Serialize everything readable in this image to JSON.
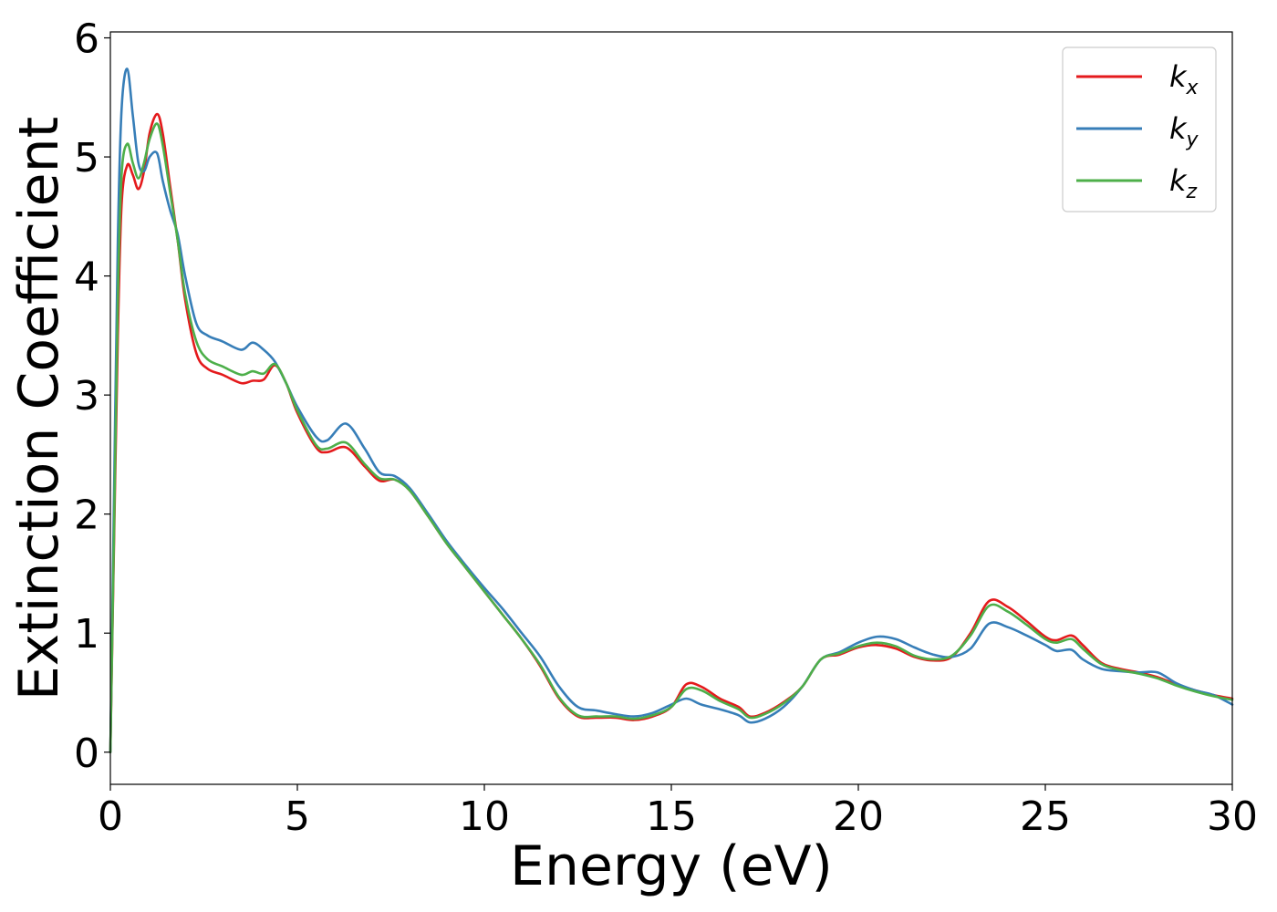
{
  "chart_data": {
    "type": "line",
    "title": "",
    "xlabel": "Energy (eV)",
    "ylabel": "Extinction Coefficient",
    "xlim": [
      0,
      30
    ],
    "ylim": [
      -0.27,
      6.05
    ],
    "xticks": [
      0,
      5,
      10,
      15,
      20,
      25,
      30
    ],
    "yticks": [
      0,
      1,
      2,
      3,
      4,
      5,
      6
    ],
    "grid": false,
    "legend_position": "top-right",
    "x": [
      0,
      0.1,
      0.2,
      0.3,
      0.45,
      0.6,
      0.75,
      0.9,
      1.05,
      1.25,
      1.4,
      1.6,
      1.8,
      2.0,
      2.3,
      2.6,
      3.0,
      3.5,
      3.8,
      4.1,
      4.4,
      4.7,
      5.0,
      5.5,
      5.8,
      6.3,
      6.8,
      7.2,
      7.6,
      8.0,
      8.5,
      9.0,
      9.5,
      10.0,
      10.5,
      11.0,
      11.5,
      12.0,
      12.5,
      13.0,
      13.5,
      14.0,
      14.5,
      15.0,
      15.4,
      15.8,
      16.3,
      16.8,
      17.1,
      17.5,
      18.0,
      18.5,
      19.0,
      19.5,
      20.0,
      20.5,
      21.0,
      21.5,
      22.0,
      22.5,
      23.0,
      23.5,
      24.0,
      24.5,
      25.0,
      25.3,
      25.7,
      26.0,
      26.5,
      27.0,
      27.5,
      28.0,
      28.5,
      29.0,
      29.5,
      30.0
    ],
    "series": [
      {
        "name": "k_x",
        "label_base": "k",
        "label_sub": "x",
        "color": "#e41a1c",
        "values": [
          0.0,
          1.8,
          3.5,
          4.6,
          4.93,
          4.85,
          4.73,
          4.88,
          5.2,
          5.36,
          5.2,
          4.75,
          4.3,
          3.8,
          3.35,
          3.22,
          3.17,
          3.1,
          3.12,
          3.13,
          3.25,
          3.1,
          2.85,
          2.56,
          2.52,
          2.56,
          2.4,
          2.28,
          2.29,
          2.2,
          1.98,
          1.75,
          1.55,
          1.35,
          1.15,
          0.95,
          0.72,
          0.45,
          0.3,
          0.29,
          0.29,
          0.27,
          0.3,
          0.38,
          0.57,
          0.55,
          0.45,
          0.38,
          0.3,
          0.33,
          0.42,
          0.55,
          0.78,
          0.82,
          0.88,
          0.9,
          0.87,
          0.8,
          0.77,
          0.8,
          1.0,
          1.27,
          1.22,
          1.1,
          0.97,
          0.94,
          0.98,
          0.9,
          0.75,
          0.7,
          0.67,
          0.63,
          0.57,
          0.52,
          0.48,
          0.45
        ]
      },
      {
        "name": "k_y",
        "label_base": "k",
        "label_sub": "y",
        "color": "#377eb8",
        "values": [
          0.0,
          2.2,
          4.3,
          5.4,
          5.74,
          5.35,
          4.95,
          4.88,
          5.0,
          5.03,
          4.8,
          4.55,
          4.35,
          4.0,
          3.6,
          3.5,
          3.45,
          3.38,
          3.44,
          3.38,
          3.28,
          3.1,
          2.9,
          2.65,
          2.62,
          2.76,
          2.55,
          2.35,
          2.32,
          2.22,
          2.0,
          1.77,
          1.57,
          1.38,
          1.2,
          1.0,
          0.8,
          0.55,
          0.38,
          0.35,
          0.32,
          0.3,
          0.33,
          0.4,
          0.45,
          0.4,
          0.36,
          0.31,
          0.25,
          0.28,
          0.38,
          0.55,
          0.78,
          0.84,
          0.92,
          0.97,
          0.95,
          0.88,
          0.82,
          0.8,
          0.87,
          1.08,
          1.05,
          0.98,
          0.9,
          0.85,
          0.86,
          0.78,
          0.7,
          0.68,
          0.67,
          0.67,
          0.58,
          0.52,
          0.48,
          0.4
        ]
      },
      {
        "name": "k_z",
        "label_base": "k",
        "label_sub": "z",
        "color": "#4daf4a",
        "values": [
          0.0,
          1.9,
          3.8,
          4.85,
          5.11,
          4.95,
          4.82,
          4.95,
          5.15,
          5.28,
          5.1,
          4.7,
          4.3,
          3.85,
          3.45,
          3.3,
          3.24,
          3.17,
          3.2,
          3.18,
          3.26,
          3.1,
          2.87,
          2.58,
          2.55,
          2.6,
          2.42,
          2.3,
          2.29,
          2.2,
          1.98,
          1.75,
          1.55,
          1.35,
          1.15,
          0.95,
          0.73,
          0.46,
          0.31,
          0.3,
          0.3,
          0.28,
          0.31,
          0.38,
          0.53,
          0.52,
          0.43,
          0.36,
          0.29,
          0.32,
          0.41,
          0.55,
          0.78,
          0.83,
          0.89,
          0.92,
          0.89,
          0.81,
          0.78,
          0.81,
          0.98,
          1.23,
          1.18,
          1.07,
          0.95,
          0.92,
          0.95,
          0.87,
          0.74,
          0.69,
          0.66,
          0.62,
          0.56,
          0.51,
          0.47,
          0.44
        ]
      }
    ]
  }
}
